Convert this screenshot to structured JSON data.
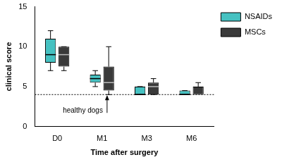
{
  "chart_data": {
    "type": "boxplot",
    "x_label": "Time after surgery",
    "y_label": "clinical score",
    "categories": [
      "D0",
      "M1",
      "M3",
      "M6"
    ],
    "series": [
      {
        "name": "NSAIDs",
        "color": "#45c1c1",
        "values": [
          {
            "min": 7,
            "q1": 8,
            "median": 9,
            "q3": 11,
            "max": 12
          },
          {
            "min": 5,
            "q1": 5.5,
            "median": 6,
            "q3": 6.5,
            "max": 7
          },
          {
            "min": 4,
            "q1": 4,
            "median": 4,
            "q3": 5,
            "max": 5
          },
          {
            "min": 4,
            "q1": 4,
            "median": 4,
            "q3": 4.5,
            "max": 4.5
          }
        ]
      },
      {
        "name": "MSCs",
        "color": "#3a3a3a",
        "values": [
          {
            "min": 7,
            "q1": 7.5,
            "median": 9,
            "q3": 10,
            "max": 10
          },
          {
            "min": 4,
            "q1": 4.5,
            "median": 5.5,
            "q3": 7.5,
            "max": 10
          },
          {
            "min": 4,
            "q1": 4,
            "median": 5,
            "q3": 5.5,
            "max": 6
          },
          {
            "min": 4,
            "q1": 4,
            "median": 4,
            "q3": 5,
            "max": 5.5
          }
        ]
      }
    ],
    "annotations": [
      {
        "text": "healthy dogs",
        "y": 4,
        "line_style": "dotted"
      }
    ],
    "ylim": [
      0,
      15
    ],
    "yticks": [
      0,
      5,
      10,
      15
    ],
    "grid": false,
    "legend": "upper right"
  }
}
